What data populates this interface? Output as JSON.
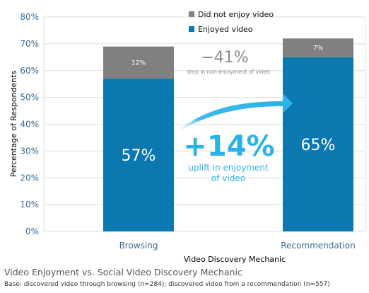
{
  "chart_data": {
    "type": "bar",
    "stacked": true,
    "categories": [
      "Browsing",
      "Recommendation"
    ],
    "series": [
      {
        "name": "Enjoyed video",
        "values": [
          57,
          65
        ],
        "labels": [
          "57%",
          "65%"
        ],
        "color": "#0b78b0"
      },
      {
        "name": "Did not enjoy video",
        "values": [
          12,
          7
        ],
        "labels": [
          "12%",
          "7%"
        ],
        "color": "#808080"
      }
    ],
    "xlabel": "Video Discovery Mechanic",
    "ylabel": "Percentage of Respondents",
    "ylim": [
      0,
      80
    ],
    "yticks": [
      0,
      10,
      20,
      30,
      40,
      50,
      60,
      70,
      80
    ],
    "ytick_labels": [
      "0%",
      "10%",
      "20%",
      "30%",
      "40%",
      "50%",
      "60%",
      "70%",
      "80%"
    ],
    "grid": true,
    "legend_position": "top-right",
    "annotations": {
      "drop_value": "−41%",
      "drop_text": "drop in non-enjoyment of video",
      "uplift_value": "+14%",
      "uplift_line1": "uplift in enjoyment",
      "uplift_line2": "of video",
      "arrow_color": "#29b3e8"
    }
  },
  "caption": {
    "title": "Video Enjoyment vs. Social Video Discovery Mechanic",
    "base": "Base: discovered video through browsing (n=284); discovered video from a recommendation (n=557)"
  }
}
